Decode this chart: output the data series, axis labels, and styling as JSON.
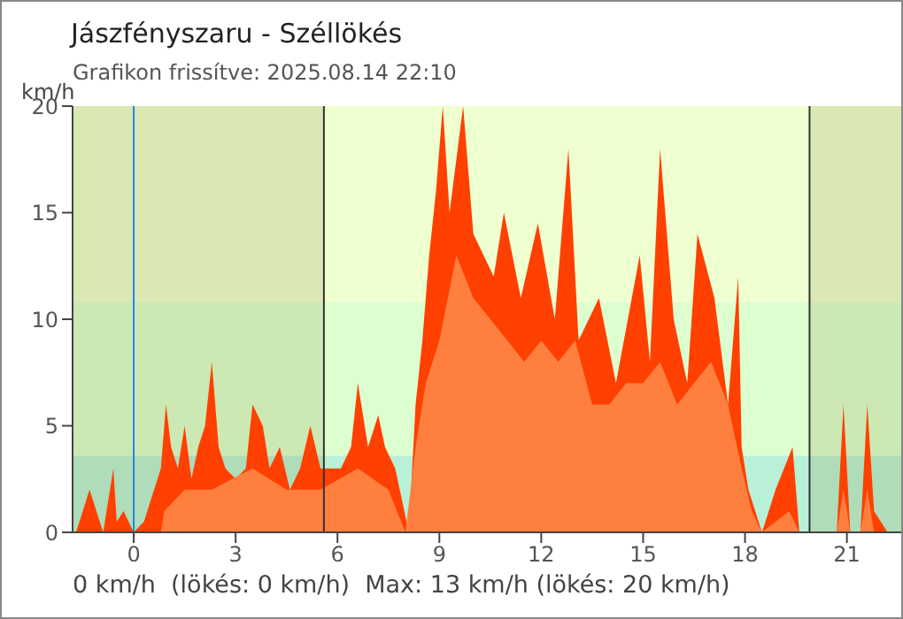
{
  "chart_data": {
    "type": "area",
    "title": "Jászfényszaru - Széllökés",
    "subtitle": "Grafikon frissítve: 2025.08.14 22:10",
    "ylabel": "km/h",
    "annotations": [
      "0 km/h  (lökés: 0 km/h)  Max: 13 km/h (lökés: 20 km/h)"
    ],
    "xlim": [
      -1.8,
      22.6
    ],
    "xticks": [
      0,
      3,
      6,
      9,
      12,
      15,
      18,
      21
    ],
    "ylim": [
      0,
      20
    ],
    "yticks": [
      0,
      5,
      10,
      15,
      20
    ],
    "grid": false,
    "legend": false,
    "bands": [
      {
        "axis": "y",
        "from": 0,
        "to": 3.6,
        "color": "#b8f0d8"
      },
      {
        "axis": "y",
        "from": 3.6,
        "to": 10.8,
        "color": "#ddffd0"
      },
      {
        "axis": "y",
        "from": 10.8,
        "to": 20,
        "color": "#eeffd0"
      },
      {
        "axis": "x",
        "from": -1.8,
        "to": 5.6,
        "color": "#8a8a40"
      },
      {
        "axis": "x",
        "from": 19.9,
        "to": 22.6,
        "color": "#8a8a40"
      }
    ],
    "ref_lines": [
      {
        "axis": "x",
        "value": 0,
        "color": "#1e88e5"
      },
      {
        "axis": "x",
        "value": 5.6,
        "color": "#333333"
      },
      {
        "axis": "x",
        "value": 19.9,
        "color": "#333333"
      }
    ],
    "series": [
      {
        "color": "#ff4000",
        "x": [
          -1.7,
          -1.3,
          -0.9,
          -0.6,
          -0.5,
          -0.3,
          0,
          0.3,
          0.6,
          0.8,
          0.95,
          1.1,
          1.3,
          1.5,
          1.7,
          1.9,
          2.1,
          2.3,
          2.5,
          2.7,
          3,
          3.3,
          3.5,
          3.8,
          4,
          4.3,
          4.6,
          4.9,
          5.2,
          5.5,
          5.8,
          6.1,
          6.4,
          6.6,
          6.9,
          7.2,
          7.4,
          7.7,
          7.9,
          8.1,
          8.3,
          8.5,
          8.7,
          8.9,
          9.1,
          9.3,
          9.7,
          10,
          10.6,
          10.9,
          11.4,
          11.9,
          12.4,
          12.8,
          13.1,
          13.7,
          14.2,
          14.9,
          15.2,
          15.5,
          15.9,
          16.3,
          16.6,
          17.1,
          17.5,
          17.8,
          17.9,
          18.1,
          18.5,
          18.9,
          19.4,
          19.6,
          19.9,
          20.7,
          20.9,
          21.1,
          21.4,
          21.6,
          21.8,
          22.2
        ],
        "values": [
          0,
          2,
          0,
          3,
          0.5,
          1,
          0,
          0.5,
          2,
          3,
          6,
          4,
          3,
          5,
          2.5,
          4,
          5,
          8,
          4,
          3,
          2.5,
          3,
          6,
          5,
          3,
          4,
          2,
          3,
          5,
          3,
          3,
          3,
          4,
          7,
          4,
          5.5,
          4,
          3,
          1.5,
          0,
          6,
          9,
          13,
          16,
          20,
          15,
          20,
          14,
          12,
          15,
          11,
          14.5,
          10,
          18,
          9,
          11,
          7,
          13,
          8,
          18,
          10,
          7,
          14,
          11,
          6,
          12,
          4,
          2,
          0,
          2,
          4,
          0,
          0,
          0,
          6,
          0,
          0,
          6,
          1,
          0
        ]
      },
      {
        "color": "#ff7f3f",
        "x": [
          -1.8,
          0.8,
          0.9,
          1.5,
          2.3,
          3.5,
          4.5,
          5.5,
          6.6,
          7.5,
          8,
          8.3,
          8.6,
          9,
          9.5,
          10,
          10.5,
          11,
          11.5,
          12,
          12.5,
          13,
          13.5,
          14,
          14.5,
          15,
          15.5,
          16,
          16.5,
          17,
          17.5,
          17.9,
          18.2,
          18.5,
          19.3,
          19.6,
          20.7,
          20.9,
          21.1,
          21.4,
          21.6,
          21.8,
          22.3
        ],
        "values": [
          0,
          0,
          1,
          2,
          2,
          3,
          2,
          2,
          3,
          2,
          0,
          4,
          7,
          9,
          13,
          11,
          10,
          9,
          8,
          9,
          8,
          9,
          6,
          6,
          7,
          7,
          8,
          6,
          7,
          8,
          6,
          3,
          1,
          0,
          1,
          0,
          0,
          2,
          0,
          0,
          2,
          0,
          0
        ]
      }
    ]
  }
}
